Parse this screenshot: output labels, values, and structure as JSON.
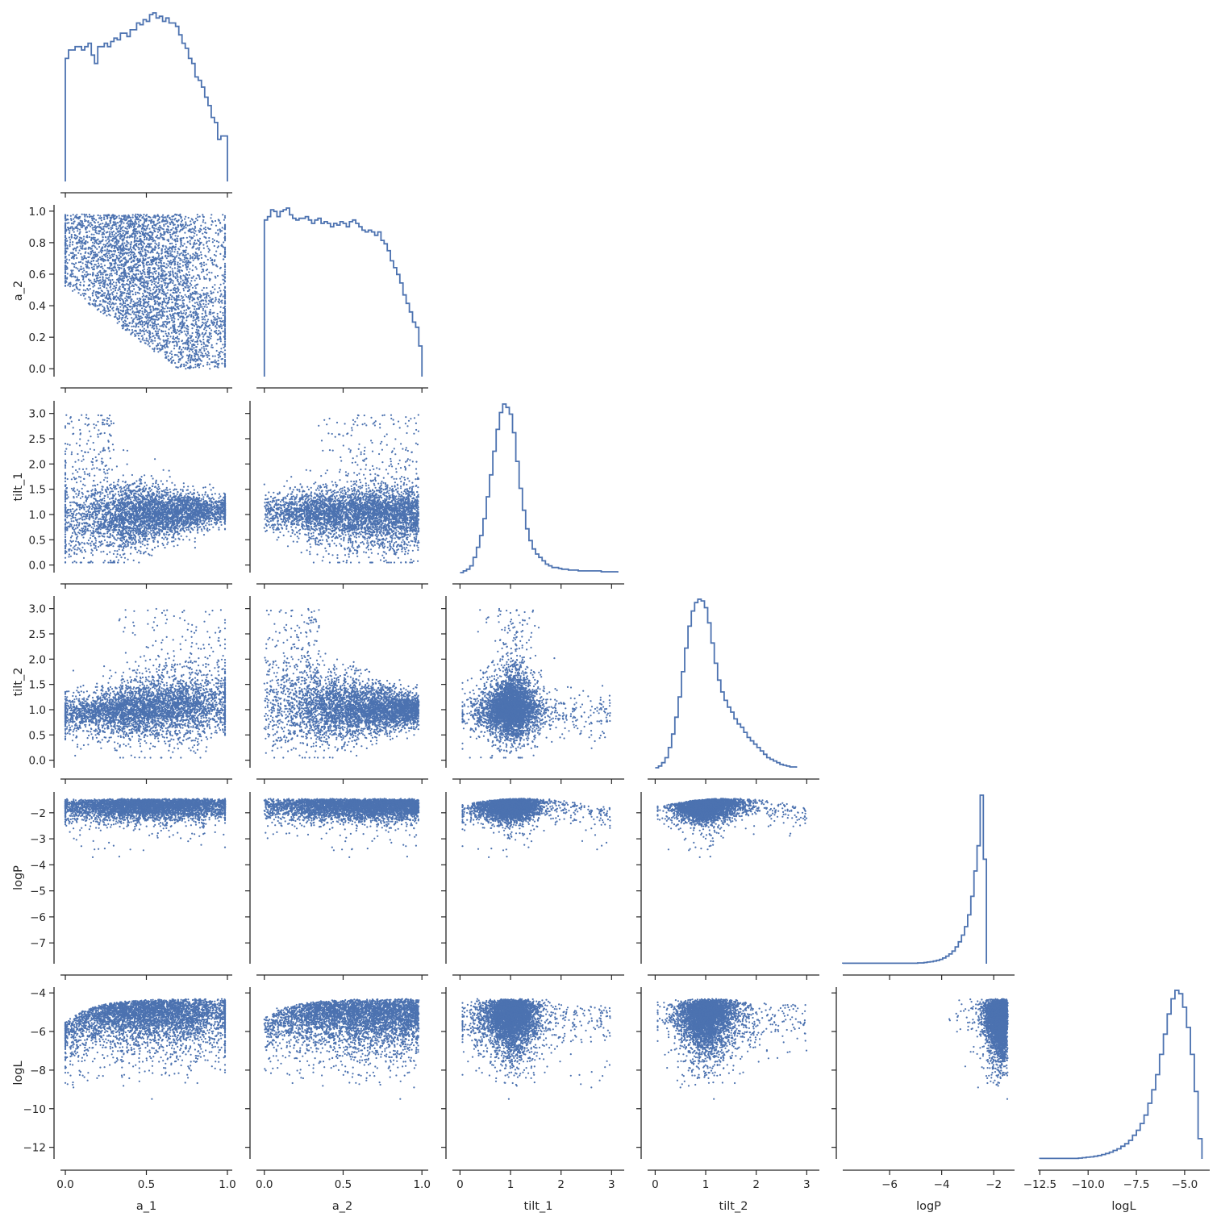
{
  "chart_data": {
    "type": "scatter",
    "variables": [
      {
        "key": "a_1",
        "label": "a_1",
        "range": [
          -0.03,
          1.03
        ],
        "ticks": [
          0.0,
          0.5,
          1.0
        ],
        "tick_labels": [
          "0.0",
          "0.5",
          "1.0"
        ]
      },
      {
        "key": "a_2",
        "label": "a_2",
        "range": [
          -0.05,
          1.04
        ],
        "ticks": [
          0.0,
          0.2,
          0.4,
          0.6,
          0.8,
          1.0
        ],
        "tick_labels": [
          "0.0",
          "0.2",
          "0.4",
          "0.6",
          "0.8",
          "1.0"
        ],
        "x_ticks": [
          0.0,
          0.5,
          1.0
        ],
        "x_tick_labels": [
          "0.0",
          "0.5",
          "1.0"
        ]
      },
      {
        "key": "tilt_1",
        "label": "tilt_1",
        "range": [
          -0.15,
          3.25
        ],
        "ticks": [
          0.0,
          0.5,
          1.0,
          1.5,
          2.0,
          2.5,
          3.0
        ],
        "tick_labels": [
          "0.0",
          "0.5",
          "1.0",
          "1.5",
          "2.0",
          "2.5",
          "3.0"
        ],
        "x_ticks": [
          0,
          1,
          2,
          3
        ],
        "x_tick_labels": [
          "0",
          "1",
          "2",
          "3"
        ]
      },
      {
        "key": "tilt_2",
        "label": "tilt_2",
        "range": [
          -0.15,
          3.25
        ],
        "ticks": [
          0.0,
          0.5,
          1.0,
          1.5,
          2.0,
          2.5,
          3.0
        ],
        "tick_labels": [
          "0.0",
          "0.5",
          "1.0",
          "1.5",
          "2.0",
          "2.5",
          "3.0"
        ],
        "x_ticks": [
          0,
          1,
          2,
          3
        ],
        "x_tick_labels": [
          "0",
          "1",
          "2",
          "3"
        ]
      },
      {
        "key": "logP",
        "label": "logP",
        "range": [
          -7.8,
          -1.2
        ],
        "ticks": [
          -7,
          -6,
          -5,
          -4,
          -3,
          -2
        ],
        "tick_labels": [
          "−7",
          "−6",
          "−5",
          "−4",
          "−3",
          "−2"
        ],
        "x_ticks": [
          -6,
          -4,
          -2
        ],
        "x_tick_labels": [
          "−6",
          "−4",
          "−2"
        ]
      },
      {
        "key": "logL",
        "label": "logL",
        "range": [
          -12.6,
          -3.7
        ],
        "ticks": [
          -12,
          -10,
          -8,
          -6,
          -4
        ],
        "tick_labels": [
          "−12",
          "−10",
          "−8",
          "−6",
          "−4"
        ],
        "x_ticks": [
          -12.5,
          -10.0,
          -7.5,
          -5.0
        ],
        "x_tick_labels": [
          "−12.5",
          "−10.0",
          "−7.5",
          "−5.0"
        ]
      }
    ],
    "histograms": [
      {
        "key": "a_1",
        "bin_width": 0.02,
        "start": 0.0,
        "counts": [
          0.73,
          0.78,
          0.78,
          0.8,
          0.8,
          0.78,
          0.8,
          0.82,
          0.75,
          0.7,
          0.8,
          0.8,
          0.82,
          0.8,
          0.83,
          0.85,
          0.84,
          0.88,
          0.88,
          0.86,
          0.9,
          0.9,
          0.94,
          0.93,
          0.96,
          0.95,
          0.99,
          1.0,
          0.97,
          0.98,
          0.95,
          0.97,
          0.94,
          0.94,
          0.92,
          0.87,
          0.82,
          0.79,
          0.73,
          0.7,
          0.62,
          0.6,
          0.56,
          0.5,
          0.45,
          0.38,
          0.35,
          0.25,
          0.27,
          0.27
        ]
      },
      {
        "key": "a_2",
        "bin_width": 0.02,
        "start": 0.0,
        "counts": [
          0.92,
          0.94,
          0.98,
          0.97,
          0.94,
          0.97,
          0.98,
          0.99,
          0.95,
          0.93,
          0.92,
          0.93,
          0.93,
          0.94,
          0.92,
          0.9,
          0.92,
          0.93,
          0.9,
          0.91,
          0.9,
          0.88,
          0.9,
          0.89,
          0.91,
          0.9,
          0.88,
          0.91,
          0.92,
          0.9,
          0.88,
          0.86,
          0.85,
          0.86,
          0.85,
          0.83,
          0.85,
          0.8,
          0.78,
          0.74,
          0.68,
          0.64,
          0.6,
          0.55,
          0.48,
          0.43,
          0.38,
          0.32,
          0.29,
          0.18
        ]
      },
      {
        "key": "tilt_1",
        "bin_width": 0.065,
        "start": 0.0,
        "counts": [
          0.0,
          0.01,
          0.02,
          0.04,
          0.09,
          0.15,
          0.22,
          0.32,
          0.45,
          0.58,
          0.72,
          0.85,
          0.95,
          1.0,
          0.98,
          0.94,
          0.83,
          0.66,
          0.5,
          0.37,
          0.26,
          0.19,
          0.14,
          0.11,
          0.09,
          0.07,
          0.05,
          0.04,
          0.03,
          0.03,
          0.025,
          0.02,
          0.02,
          0.015,
          0.015,
          0.015,
          0.01,
          0.01,
          0.01,
          0.01,
          0.01,
          0.01,
          0.01,
          0.005,
          0.005,
          0.005,
          0.005,
          0.005
        ]
      },
      {
        "key": "tilt_2",
        "bin_width": 0.065,
        "start": 0.0,
        "counts": [
          0.0,
          0.01,
          0.03,
          0.06,
          0.12,
          0.2,
          0.3,
          0.42,
          0.57,
          0.71,
          0.84,
          0.93,
          0.98,
          1.0,
          0.99,
          0.95,
          0.86,
          0.74,
          0.62,
          0.52,
          0.45,
          0.4,
          0.36,
          0.33,
          0.29,
          0.26,
          0.24,
          0.21,
          0.18,
          0.16,
          0.14,
          0.12,
          0.1,
          0.08,
          0.06,
          0.05,
          0.04,
          0.03,
          0.02,
          0.015,
          0.01,
          0.005,
          0.005
        ]
      },
      {
        "key": "logP",
        "bin_width": 0.12,
        "start": -7.8,
        "counts": [
          0.003,
          0.003,
          0.003,
          0.003,
          0.003,
          0.003,
          0.003,
          0.003,
          0.003,
          0.003,
          0.003,
          0.003,
          0.003,
          0.003,
          0.003,
          0.003,
          0.003,
          0.003,
          0.003,
          0.003,
          0.003,
          0.003,
          0.003,
          0.003,
          0.005,
          0.005,
          0.007,
          0.01,
          0.012,
          0.016,
          0.02,
          0.026,
          0.034,
          0.045,
          0.058,
          0.075,
          0.1,
          0.13,
          0.17,
          0.22,
          0.29,
          0.4,
          0.55,
          0.7,
          1.0,
          0.62
        ]
      },
      {
        "key": "logL",
        "bin_width": 0.2,
        "start": -12.5,
        "counts": [
          0.003,
          0.003,
          0.003,
          0.003,
          0.003,
          0.003,
          0.003,
          0.003,
          0.003,
          0.003,
          0.005,
          0.007,
          0.01,
          0.012,
          0.016,
          0.02,
          0.026,
          0.032,
          0.04,
          0.05,
          0.06,
          0.075,
          0.09,
          0.11,
          0.14,
          0.17,
          0.21,
          0.26,
          0.33,
          0.41,
          0.5,
          0.62,
          0.74,
          0.86,
          0.95,
          1.0,
          0.98,
          0.9,
          0.78,
          0.62,
          0.4,
          0.12
        ]
      }
    ],
    "scatter_panels": [
      {
        "x": "a_1",
        "y": "a_2"
      },
      {
        "x": "a_1",
        "y": "tilt_1"
      },
      {
        "x": "a_2",
        "y": "tilt_1"
      },
      {
        "x": "a_1",
        "y": "tilt_2"
      },
      {
        "x": "a_2",
        "y": "tilt_2"
      },
      {
        "x": "tilt_1",
        "y": "tilt_2"
      },
      {
        "x": "a_1",
        "y": "logP"
      },
      {
        "x": "a_2",
        "y": "logP"
      },
      {
        "x": "tilt_1",
        "y": "logP"
      },
      {
        "x": "tilt_2",
        "y": "logP"
      },
      {
        "x": "a_1",
        "y": "logL"
      },
      {
        "x": "a_2",
        "y": "logL"
      },
      {
        "x": "tilt_1",
        "y": "logL"
      },
      {
        "x": "tilt_2",
        "y": "logL"
      },
      {
        "x": "logP",
        "y": "logL"
      }
    ],
    "samples": {
      "a_1": [
        0.12,
        0.25,
        0.4,
        0.5,
        0.62,
        0.78,
        0.91,
        0.97,
        0.05,
        0.33
      ],
      "a_2": [
        0.8,
        0.62,
        0.45,
        0.3,
        0.18,
        0.12,
        0.08,
        0.3,
        0.95,
        0.55
      ],
      "tilt_1": [
        0.9,
        1.0,
        1.1,
        1.2,
        0.8,
        1.3,
        1.1,
        1.2,
        2.6,
        0.7
      ],
      "tilt_2": [
        0.7,
        0.9,
        1.1,
        1.6,
        2.0,
        1.8,
        1.3,
        1.0,
        0.5,
        1.2
      ],
      "logP": [
        -2.0,
        -2.1,
        -1.8,
        -2.3,
        -1.9,
        -1.7,
        -1.8,
        -1.5,
        -2.6,
        -2.0
      ],
      "logL": [
        -7.5,
        -6.4,
        -5.6,
        -5.2,
        -5.0,
        -4.9,
        -4.8,
        -5.1,
        -8.9,
        -5.9
      ]
    },
    "color": "#4c72b0",
    "grid": false,
    "legend": "none"
  }
}
